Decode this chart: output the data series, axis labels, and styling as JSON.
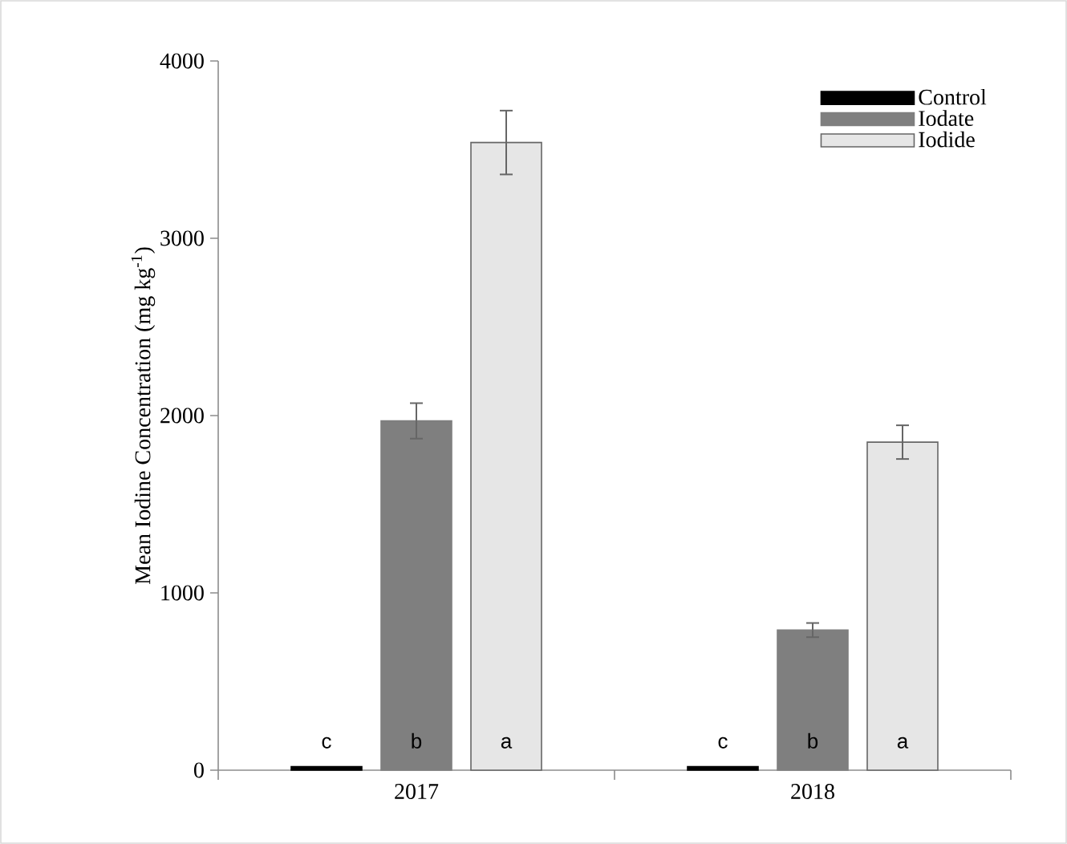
{
  "chart_data": {
    "type": "bar",
    "ylabel": "Mean Iodine Concentration (mg kg$^{-1}$)",
    "categories": [
      "2017",
      "2018"
    ],
    "series": [
      {
        "name": "Control",
        "color": "#000000",
        "values": [
          20,
          20
        ],
        "errors": [
          null,
          null
        ],
        "value_labels": [
          "c",
          "c"
        ]
      },
      {
        "name": "Iodate",
        "color": "#7f7f7f",
        "values": [
          1970,
          790
        ],
        "errors": [
          100,
          40
        ],
        "value_labels": [
          "b",
          "b"
        ]
      },
      {
        "name": "Iodide",
        "color": "#e6e6e6",
        "values": [
          3540,
          1850
        ],
        "errors": [
          180,
          95
        ],
        "value_labels": [
          "a",
          "a"
        ]
      }
    ],
    "ylim": [
      0,
      4000
    ],
    "yticks": [
      0,
      1000,
      2000,
      3000,
      4000
    ],
    "grid": false,
    "legend": "top right"
  }
}
